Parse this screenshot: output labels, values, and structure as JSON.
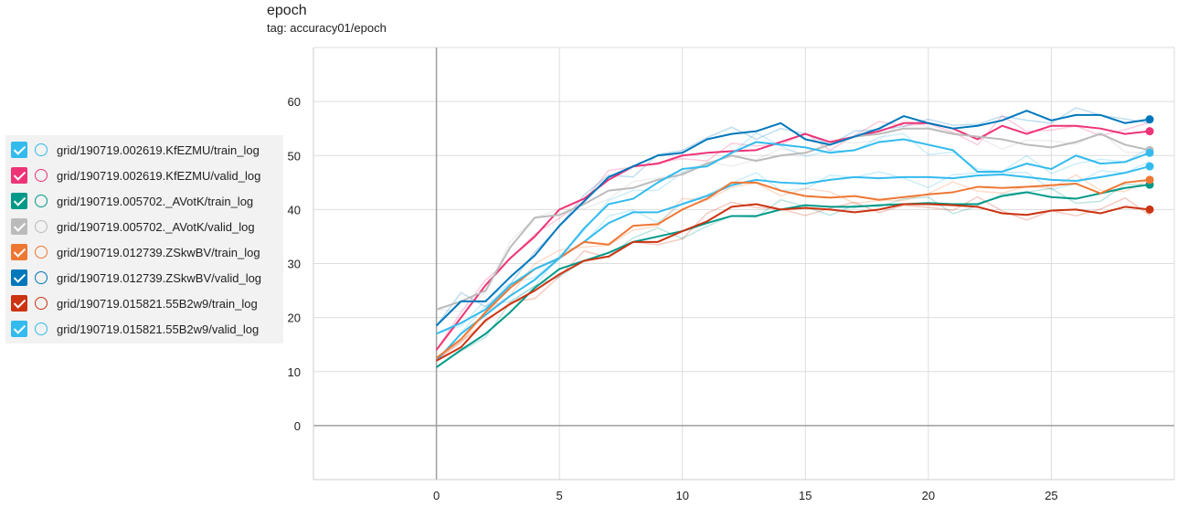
{
  "chart_data": {
    "type": "line",
    "title": "epoch",
    "subtitle": "tag: accuracy01/epoch",
    "xlim": [
      -5,
      30
    ],
    "ylim": [
      -10,
      70
    ],
    "xticks": [
      0,
      5,
      10,
      15,
      20,
      25
    ],
    "yticks": [
      0,
      10,
      20,
      30,
      40,
      50,
      60
    ],
    "x_tick_labels": [
      "0",
      "5",
      "10",
      "15",
      "20",
      "25"
    ],
    "y_tick_labels": [
      "0",
      "10",
      "20",
      "30",
      "40",
      "50",
      "60"
    ],
    "grid": true,
    "legend_position": "left",
    "series": [
      {
        "name": "grid/190719.002619.KfEZMU/train_log",
        "color": "#33bbee",
        "values": [
          12.0,
          17.0,
          20.5,
          24.0,
          27.0,
          31.0,
          34.0,
          37.5,
          39.5,
          39.5,
          41.0,
          42.5,
          44.5,
          45.5,
          45.0,
          44.8,
          45.5,
          46.0,
          45.8,
          46.0,
          46.0,
          45.8,
          46.3,
          46.5,
          46.0,
          45.5,
          45.3,
          46.0,
          46.8,
          48.0
        ]
      },
      {
        "name": "grid/190719.002619.KfEZMU/valid_log",
        "color": "#ee3377",
        "values": [
          14.0,
          20.0,
          26.0,
          31.0,
          35.0,
          40.0,
          42.0,
          45.5,
          48.0,
          48.5,
          50.0,
          50.5,
          50.8,
          51.0,
          52.5,
          54.0,
          52.5,
          53.5,
          54.5,
          56.0,
          56.0,
          55.0,
          53.0,
          55.5,
          54.0,
          55.5,
          55.5,
          55.0,
          54.0,
          54.5
        ]
      },
      {
        "name": "grid/190719.005702._AVotK/train_log",
        "color": "#009988",
        "values": [
          10.8,
          14.0,
          17.0,
          21.0,
          25.5,
          29.0,
          30.5,
          32.0,
          34.0,
          35.0,
          36.0,
          37.5,
          38.8,
          38.8,
          40.0,
          40.8,
          40.5,
          40.5,
          40.8,
          41.0,
          41.2,
          41.0,
          41.0,
          42.5,
          43.2,
          42.3,
          42.0,
          43.0,
          44.0,
          44.6
        ]
      },
      {
        "name": "grid/190719.005702._AVotK/valid_log",
        "color": "#bbbbbb",
        "values": [
          21.5,
          23.0,
          25.0,
          33.0,
          38.5,
          39.0,
          41.0,
          43.5,
          44.0,
          45.5,
          46.5,
          48.5,
          50.0,
          49.0,
          50.0,
          50.5,
          52.0,
          53.5,
          54.0,
          55.0,
          55.0,
          54.0,
          53.5,
          53.0,
          52.0,
          51.5,
          52.5,
          54.0,
          52.0,
          51.0
        ]
      },
      {
        "name": "grid/190719.012739.ZSkwBV/train_log",
        "color": "#ee7733",
        "values": [
          12.5,
          16.0,
          21.0,
          25.5,
          29.0,
          31.0,
          34.0,
          33.5,
          37.0,
          37.3,
          40.0,
          42.0,
          45.0,
          45.0,
          43.5,
          42.5,
          42.2,
          42.5,
          41.8,
          42.3,
          42.8,
          43.2,
          44.2,
          44.0,
          44.2,
          44.5,
          44.8,
          43.0,
          45.0,
          45.5
        ]
      },
      {
        "name": "grid/190719.012739.ZSkwBV/valid_log",
        "color": "#0077bb",
        "values": [
          18.5,
          23.0,
          23.0,
          27.5,
          31.5,
          37.0,
          41.5,
          46.0,
          48.0,
          50.0,
          50.5,
          53.0,
          54.0,
          54.5,
          56.0,
          53.0,
          52.0,
          53.5,
          55.0,
          57.3,
          56.0,
          55.0,
          55.5,
          56.5,
          58.3,
          56.5,
          57.5,
          57.5,
          56.0,
          56.7
        ]
      },
      {
        "name": "grid/190719.015821.55B2w9/train_log",
        "color": "#cc3311",
        "values": [
          12.0,
          14.5,
          19.5,
          22.5,
          25.0,
          28.0,
          30.5,
          31.3,
          34.0,
          34.0,
          36.0,
          37.8,
          40.5,
          41.0,
          40.0,
          40.3,
          40.0,
          39.5,
          40.0,
          41.0,
          41.0,
          40.8,
          40.5,
          39.3,
          39.0,
          39.8,
          40.0,
          39.3,
          40.5,
          40.0
        ]
      },
      {
        "name": "grid/190719.015821.55B2w9/valid_log",
        "color": "#33bbee",
        "values": [
          17.0,
          19.0,
          21.5,
          26.0,
          29.0,
          31.0,
          36.5,
          41.0,
          42.0,
          45.0,
          47.5,
          48.0,
          50.5,
          52.5,
          52.0,
          51.5,
          50.5,
          51.0,
          52.5,
          53.0,
          52.0,
          51.0,
          47.0,
          47.0,
          48.5,
          47.5,
          50.0,
          48.5,
          48.8,
          50.5
        ]
      }
    ]
  }
}
